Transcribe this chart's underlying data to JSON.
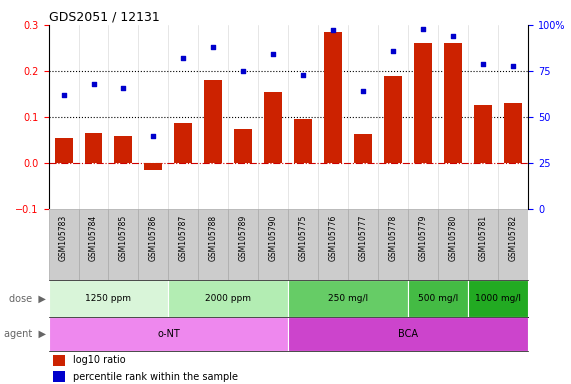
{
  "title": "GDS2051 / 12131",
  "samples": [
    "GSM105783",
    "GSM105784",
    "GSM105785",
    "GSM105786",
    "GSM105787",
    "GSM105788",
    "GSM105789",
    "GSM105790",
    "GSM105775",
    "GSM105776",
    "GSM105777",
    "GSM105778",
    "GSM105779",
    "GSM105780",
    "GSM105781",
    "GSM105782"
  ],
  "log10_ratio": [
    0.055,
    0.065,
    0.058,
    -0.015,
    0.088,
    0.18,
    0.075,
    0.155,
    0.097,
    0.285,
    0.063,
    0.19,
    0.26,
    0.26,
    0.127,
    0.13
  ],
  "percentile_rank": [
    62,
    68,
    66,
    40,
    82,
    88,
    75,
    84,
    73,
    97,
    64,
    86,
    98,
    94,
    79,
    78
  ],
  "dose_groups": [
    {
      "label": "1250 ppm",
      "start": 0,
      "end": 4,
      "color": "#d9f5d9"
    },
    {
      "label": "2000 ppm",
      "start": 4,
      "end": 8,
      "color": "#b3edb3"
    },
    {
      "label": "250 mg/l",
      "start": 8,
      "end": 12,
      "color": "#66cc66"
    },
    {
      "label": "500 mg/l",
      "start": 12,
      "end": 14,
      "color": "#44bb44"
    },
    {
      "label": "1000 mg/l",
      "start": 14,
      "end": 16,
      "color": "#22aa22"
    }
  ],
  "agent_groups": [
    {
      "label": "o-NT",
      "start": 0,
      "end": 8,
      "color": "#ee88ee"
    },
    {
      "label": "BCA",
      "start": 8,
      "end": 16,
      "color": "#cc44cc"
    }
  ],
  "bar_color": "#cc2200",
  "dot_color": "#0000cc",
  "ylim_left": [
    -0.1,
    0.3
  ],
  "ylim_right": [
    0,
    100
  ],
  "yticks_left": [
    -0.1,
    0.0,
    0.1,
    0.2,
    0.3
  ],
  "yticks_right": [
    0,
    25,
    50,
    75,
    100
  ],
  "hline_values": [
    0.1,
    0.2
  ],
  "zero_line_color": "#cc0000",
  "legend_items": [
    {
      "label": "log10 ratio",
      "color": "#cc2200"
    },
    {
      "label": "percentile rank within the sample",
      "color": "#0000cc"
    }
  ],
  "dose_label": "dose",
  "agent_label": "agent",
  "sample_bg_color": "#cccccc",
  "sample_border_color": "#aaaaaa"
}
